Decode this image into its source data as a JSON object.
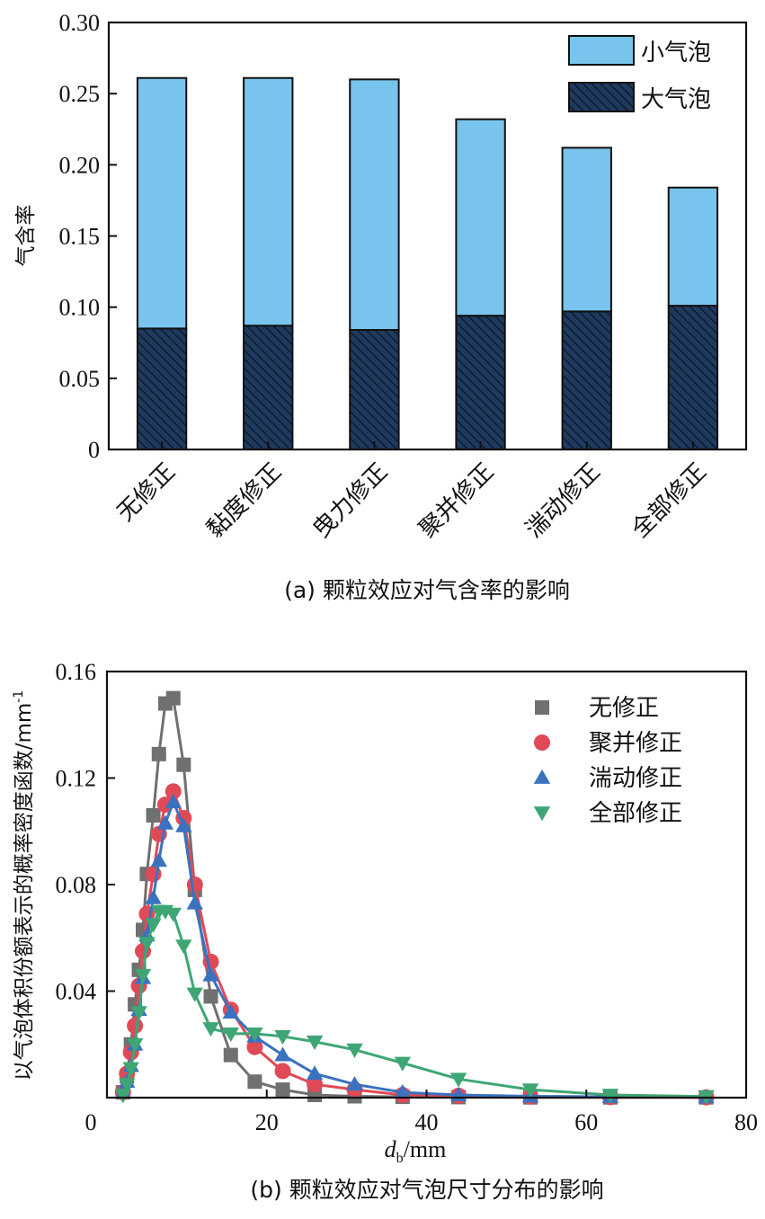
{
  "chart_data": [
    {
      "type": "bar",
      "stacked": true,
      "caption": "(a) 颗粒效应对气含率的影响",
      "ylabel": "气含率",
      "xlabel": "",
      "categories": [
        "无修正",
        "黏度修正",
        "曳力修正",
        "聚并修正",
        "湍动修正",
        "全部修正"
      ],
      "series": [
        {
          "name": "大气泡",
          "values": [
            0.085,
            0.087,
            0.084,
            0.094,
            0.097,
            0.101
          ],
          "color": "#1f3a5f",
          "pattern": "hatch"
        },
        {
          "name": "小气泡",
          "values": [
            0.176,
            0.174,
            0.176,
            0.138,
            0.115,
            0.083
          ],
          "color": "#79c4ec"
        }
      ],
      "ylim": [
        0,
        0.3
      ],
      "yticks": [
        "0",
        "0.05",
        "0.10",
        "0.15",
        "0.20",
        "0.25",
        "0.30"
      ],
      "legend_order": [
        "小气泡",
        "大气泡"
      ],
      "legend_position": "top-right",
      "grid": false
    },
    {
      "type": "line",
      "markers": true,
      "caption": "(b) 颗粒效应对气泡尺寸分布的影响",
      "ylabel": "以气泡体积份额表示的概率密度函数/mm",
      "ylabel_superscript": "-1",
      "xlabel_symbol": "d",
      "xlabel_subscript": "b",
      "xlabel_unit": "/mm",
      "xlim": [
        0,
        80
      ],
      "ylim": [
        0,
        0.16
      ],
      "xticks": [
        "0",
        "20",
        "40",
        "60",
        "80"
      ],
      "yticks": [
        "0.04",
        "0.08",
        "0.12",
        "0.16"
      ],
      "legend_position": "top-right",
      "grid": false,
      "series": [
        {
          "name": "无修正",
          "marker": "square",
          "color": "#707070",
          "x": [
            2.0,
            2.5,
            3.0,
            3.5,
            4.0,
            4.5,
            5.0,
            5.8,
            6.5,
            7.3,
            8.3,
            9.6,
            11.0,
            13.0,
            15.5,
            18.5,
            22.0,
            26.0,
            31.0,
            37.0,
            44.0,
            53.0,
            63.0,
            75.0
          ],
          "y": [
            0.002,
            0.008,
            0.02,
            0.035,
            0.048,
            0.063,
            0.084,
            0.106,
            0.129,
            0.148,
            0.15,
            0.125,
            0.078,
            0.038,
            0.016,
            0.006,
            0.003,
            0.001,
            0.0005,
            0.0003,
            0.0002,
            0.0001,
            0.0001,
            0.0001
          ]
        },
        {
          "name": "聚并修正",
          "marker": "circle",
          "color": "#e04a56",
          "x": [
            2.0,
            2.5,
            3.0,
            3.5,
            4.0,
            4.5,
            5.0,
            5.8,
            6.5,
            7.3,
            8.3,
            9.6,
            11.0,
            13.0,
            15.5,
            18.5,
            22.0,
            26.0,
            31.0,
            37.0,
            44.0,
            53.0,
            63.0,
            75.0
          ],
          "y": [
            0.002,
            0.009,
            0.017,
            0.027,
            0.042,
            0.055,
            0.069,
            0.084,
            0.099,
            0.11,
            0.115,
            0.105,
            0.08,
            0.051,
            0.033,
            0.019,
            0.01,
            0.005,
            0.003,
            0.001,
            0.0007,
            0.0004,
            0.0002,
            0.0001
          ]
        },
        {
          "name": "湍动修正",
          "marker": "triangle-up",
          "color": "#3a72c0",
          "x": [
            2.0,
            2.5,
            3.0,
            3.5,
            4.0,
            4.5,
            5.0,
            5.8,
            6.5,
            7.3,
            8.3,
            9.6,
            11.0,
            13.0,
            15.5,
            18.5,
            22.0,
            26.0,
            31.0,
            37.0,
            44.0,
            53.0,
            63.0,
            75.0
          ],
          "y": [
            0.002,
            0.006,
            0.012,
            0.02,
            0.033,
            0.045,
            0.061,
            0.075,
            0.089,
            0.103,
            0.111,
            0.102,
            0.073,
            0.046,
            0.032,
            0.023,
            0.016,
            0.009,
            0.005,
            0.002,
            0.001,
            0.0005,
            0.0003,
            0.0002
          ]
        },
        {
          "name": "全部修正",
          "marker": "triangle-down",
          "color": "#3ea674",
          "x": [
            2.0,
            2.5,
            3.0,
            3.5,
            4.0,
            4.5,
            5.0,
            5.8,
            6.5,
            7.3,
            8.3,
            9.6,
            11.0,
            13.0,
            15.5,
            18.5,
            22.0,
            26.0,
            31.0,
            37.0,
            44.0,
            53.0,
            63.0,
            75.0
          ],
          "y": [
            0.001,
            0.005,
            0.011,
            0.02,
            0.032,
            0.046,
            0.058,
            0.065,
            0.07,
            0.07,
            0.069,
            0.057,
            0.039,
            0.026,
            0.024,
            0.024,
            0.023,
            0.021,
            0.018,
            0.013,
            0.007,
            0.003,
            0.001,
            0.0004
          ]
        }
      ]
    }
  ]
}
